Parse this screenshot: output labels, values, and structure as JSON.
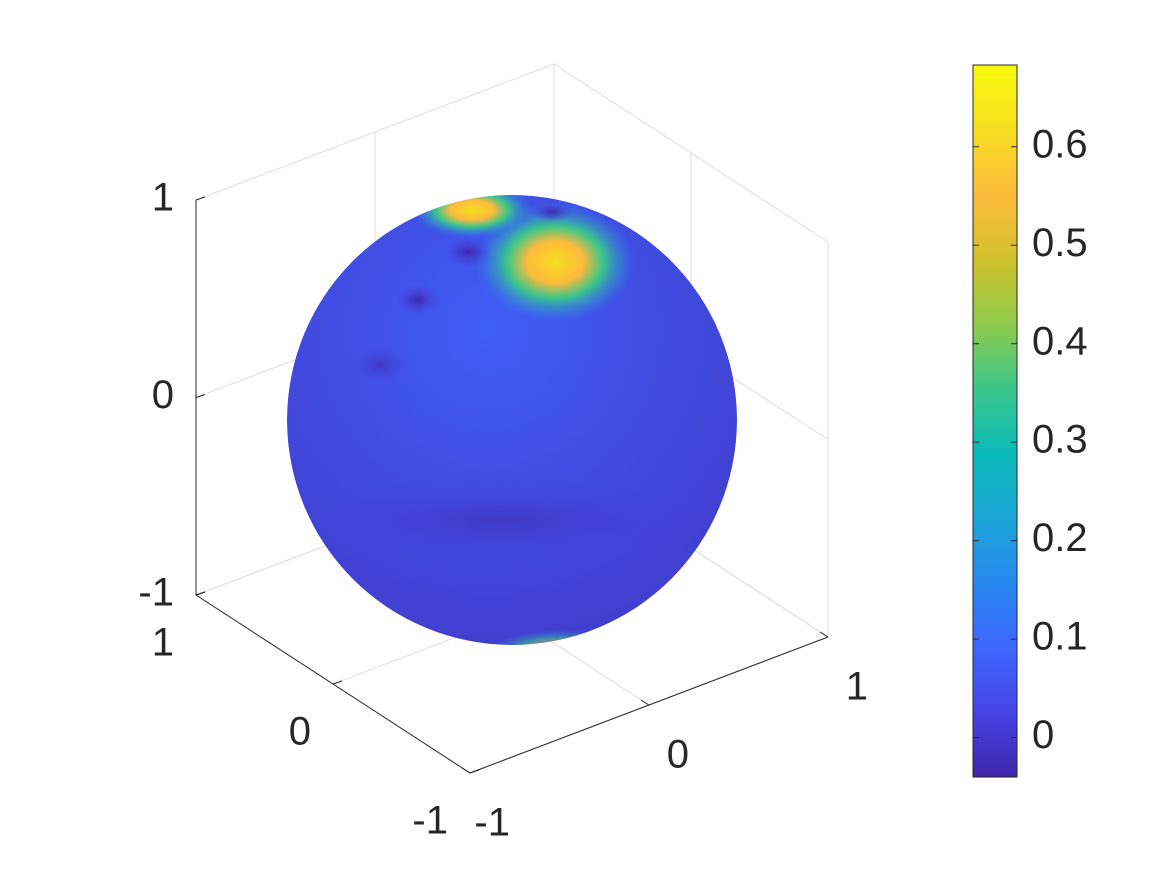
{
  "chart_data": {
    "type": "surface3d",
    "xlim": [
      -1,
      1
    ],
    "ylim": [
      -1,
      1
    ],
    "zlim": [
      -1,
      1
    ],
    "xticks": [
      -1,
      0,
      1
    ],
    "yticks": [
      -1,
      0,
      1
    ],
    "zticks": [
      -1,
      0,
      1
    ],
    "grid": true,
    "colormap": [
      "#3e26a8",
      "#4743e7",
      "#3d67fe",
      "#2888f0",
      "#1ca5d7",
      "#0bbbb8",
      "#3bc68a",
      "#8ecb4b",
      "#d1c12b",
      "#fdbb3c",
      "#f6de21",
      "#f9fb0e"
    ],
    "colorbar": {
      "clim": [
        -0.04,
        0.683
      ],
      "ticks": [
        0,
        0.1,
        0.2,
        0.3,
        0.4,
        0.5,
        0.6
      ]
    }
  }
}
